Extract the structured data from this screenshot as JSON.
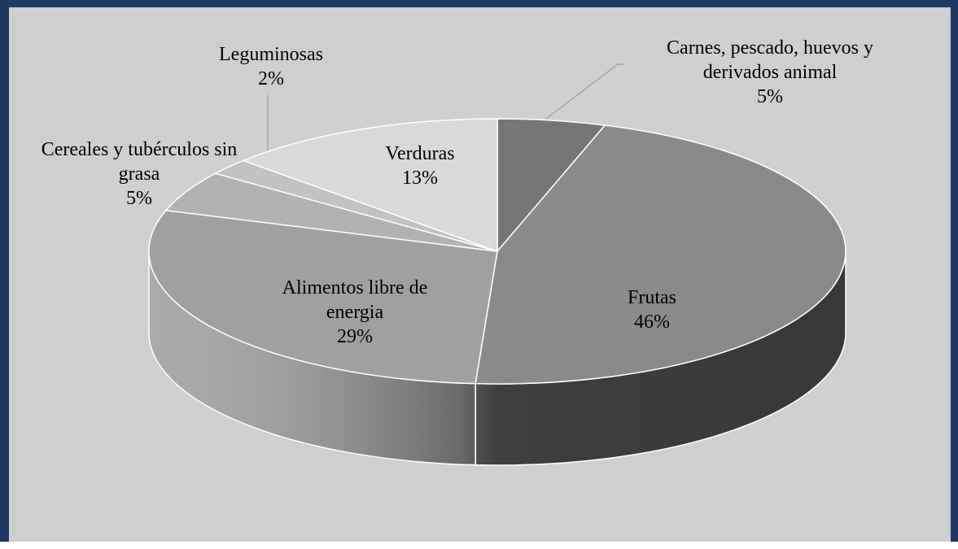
{
  "chart_data": {
    "type": "pie3d",
    "categories": [
      "Carnes, pescado, huevos y derivados animal",
      "Frutas",
      "Alimentos libre de energia",
      "Cereales y tubérculos sin grasa",
      "Leguminosas",
      "Verduras"
    ],
    "values": [
      5,
      46,
      29,
      5,
      2,
      13
    ],
    "value_labels": [
      "5%",
      "46%",
      "29%",
      "5%",
      "2%",
      "13%"
    ],
    "colors": [
      "#767676",
      "#8a8a8a",
      "#a0a0a0",
      "#b2b2b2",
      "#c2c2c2",
      "#d9d9d9"
    ]
  }
}
